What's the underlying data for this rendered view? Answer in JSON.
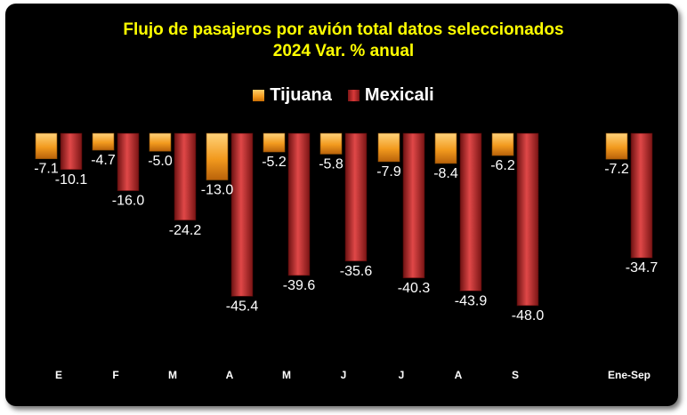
{
  "chart_data": {
    "type": "bar",
    "title_line1": "Flujo de pasajeros por avión total datos seleccionados",
    "title_line2": "2024 Var. % anual",
    "categories": [
      "E",
      "F",
      "M",
      "A",
      "M",
      "J",
      "J",
      "A",
      "S",
      "Ene-Sep"
    ],
    "series": [
      {
        "name": "Tijuana",
        "values": [
          -7.1,
          -4.7,
          -5.0,
          -13.0,
          -5.2,
          -5.8,
          -7.9,
          -8.4,
          -6.2,
          -7.2
        ]
      },
      {
        "name": "Mexicali",
        "values": [
          -10.1,
          -16.0,
          -24.2,
          -45.4,
          -39.6,
          -35.6,
          -40.3,
          -43.9,
          -48.0,
          -34.7
        ]
      }
    ],
    "ylim": [
      -60,
      0
    ],
    "legend_position": "top",
    "grid": false
  },
  "colors": {
    "tijuana": "#f29a1e",
    "mexicali": "#c0272d",
    "title": "#ffff00",
    "background": "#000000"
  }
}
